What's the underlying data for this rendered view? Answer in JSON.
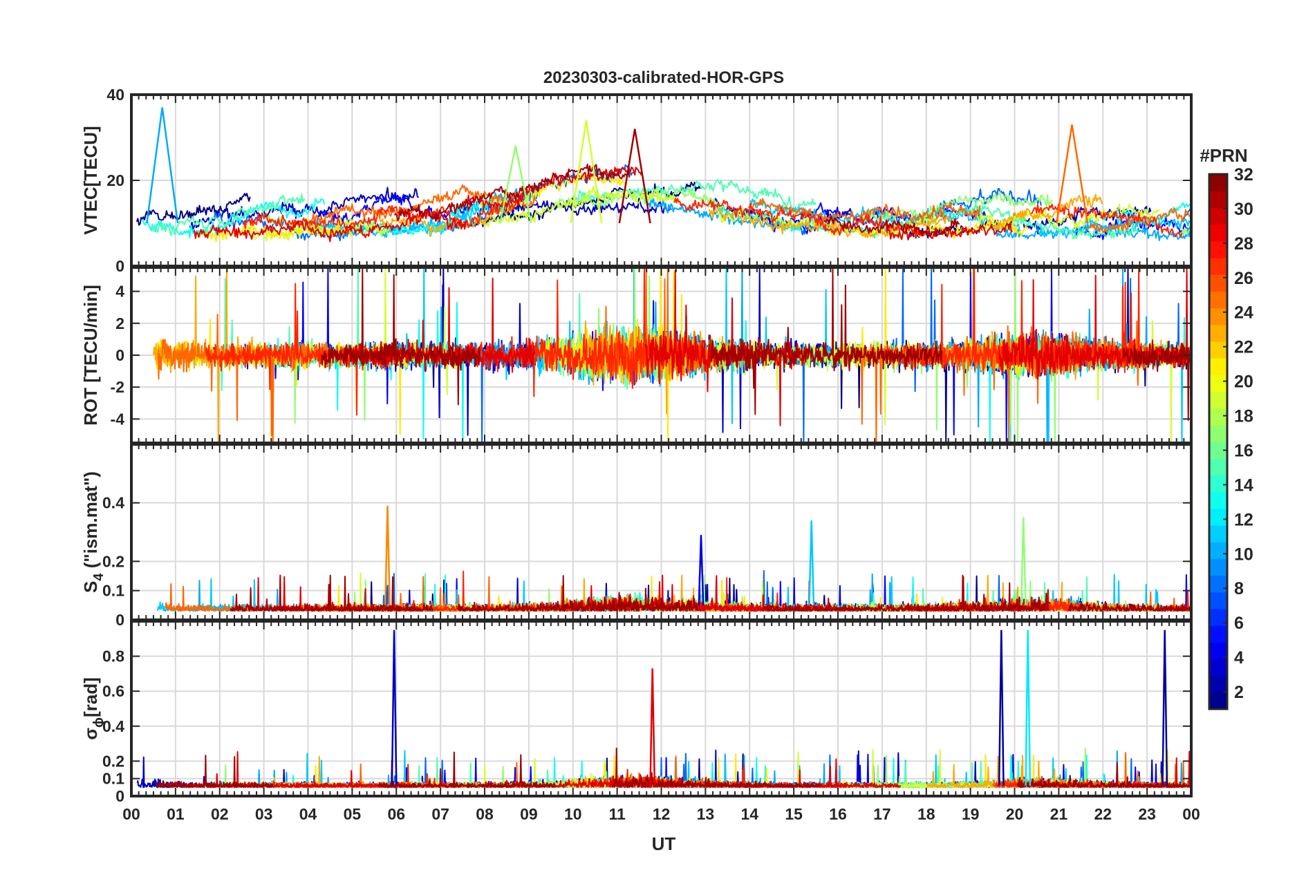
{
  "chart_data": {
    "type": "line",
    "title": "20230303-calibrated-HOR-GPS",
    "xlabel": "UT",
    "x_tick_labels": [
      "00",
      "01",
      "02",
      "03",
      "04",
      "05",
      "06",
      "07",
      "08",
      "09",
      "10",
      "11",
      "12",
      "13",
      "14",
      "15",
      "16",
      "17",
      "18",
      "19",
      "20",
      "21",
      "22",
      "23",
      "00"
    ],
    "xlim": [
      0,
      24
    ],
    "grid": true,
    "panels": [
      {
        "id": "vtec",
        "ylabel": "VTEC[TECU]",
        "ylim": [
          0,
          40
        ],
        "yticks": [
          0,
          20,
          40
        ],
        "ytick_labels": [
          "0",
          "20",
          "40"
        ],
        "peaks": [
          {
            "prn": 10,
            "hour": 0.7,
            "value": 37
          },
          {
            "prn": 19,
            "hour": 10.3,
            "value": 34
          },
          {
            "prn": 31,
            "hour": 11.4,
            "value": 32
          },
          {
            "prn": 25,
            "hour": 21.3,
            "value": 33
          },
          {
            "prn": 17,
            "hour": 8.7,
            "value": 28
          }
        ]
      },
      {
        "id": "rot",
        "ylabel": "ROT [TECU/min]",
        "ylim": [
          -5.5,
          5.5
        ],
        "yticks": [
          -4,
          -2,
          0,
          2,
          4
        ],
        "ytick_labels": [
          "-4",
          "-2",
          "0",
          "2",
          "4"
        ]
      },
      {
        "id": "s4",
        "ylabel": "S4 (\"ism.mat\")",
        "ylabel_main": "S",
        "ylabel_sub": "4",
        "ylabel_rest": " (\"ism.mat\")",
        "ylim": [
          0,
          0.6
        ],
        "yticks": [
          0,
          0.1,
          0.2,
          0.4
        ],
        "ytick_labels": [
          "0",
          "0.1",
          "0.2",
          "0.4"
        ],
        "peaks": [
          {
            "prn": 24,
            "hour": 5.8,
            "value": 0.39
          },
          {
            "prn": 11,
            "hour": 15.4,
            "value": 0.34
          },
          {
            "prn": 17,
            "hour": 20.2,
            "value": 0.35
          },
          {
            "prn": 4,
            "hour": 12.9,
            "value": 0.29
          }
        ]
      },
      {
        "id": "sigma_phi",
        "ylabel": "σφ [rad]",
        "ylabel_main": "σ",
        "ylabel_sub": "ϕ",
        "ylabel_rest": "[rad]",
        "ylim": [
          0,
          1.0
        ],
        "yticks": [
          0,
          0.1,
          0.2,
          0.4,
          0.6,
          0.8
        ],
        "ytick_labels": [
          "0",
          "0.1",
          "0.2",
          "0.4",
          "0.6",
          "0.8"
        ],
        "peaks": [
          {
            "prn": 3,
            "hour": 5.95,
            "value": 0.95
          },
          {
            "prn": 29,
            "hour": 11.8,
            "value": 0.73
          },
          {
            "prn": 2,
            "hour": 19.7,
            "value": 0.95
          },
          {
            "prn": 12,
            "hour": 20.3,
            "value": 0.95
          },
          {
            "prn": 2,
            "hour": 23.4,
            "value": 0.95
          }
        ]
      }
    ],
    "colorbar": {
      "label": "#PRN",
      "colormap": "jet",
      "range": [
        1,
        32
      ],
      "ticks": [
        2,
        4,
        6,
        8,
        10,
        12,
        14,
        16,
        18,
        20,
        22,
        24,
        26,
        28,
        30,
        32
      ],
      "tick_labels": [
        "2",
        "4",
        "6",
        "8",
        "10",
        "12",
        "14",
        "16",
        "18",
        "20",
        "22",
        "24",
        "26",
        "28",
        "30",
        "32"
      ]
    },
    "series_prns": [
      1,
      3,
      5,
      8,
      10,
      11,
      13,
      15,
      17,
      19,
      21,
      23,
      25,
      27,
      29,
      31
    ]
  }
}
